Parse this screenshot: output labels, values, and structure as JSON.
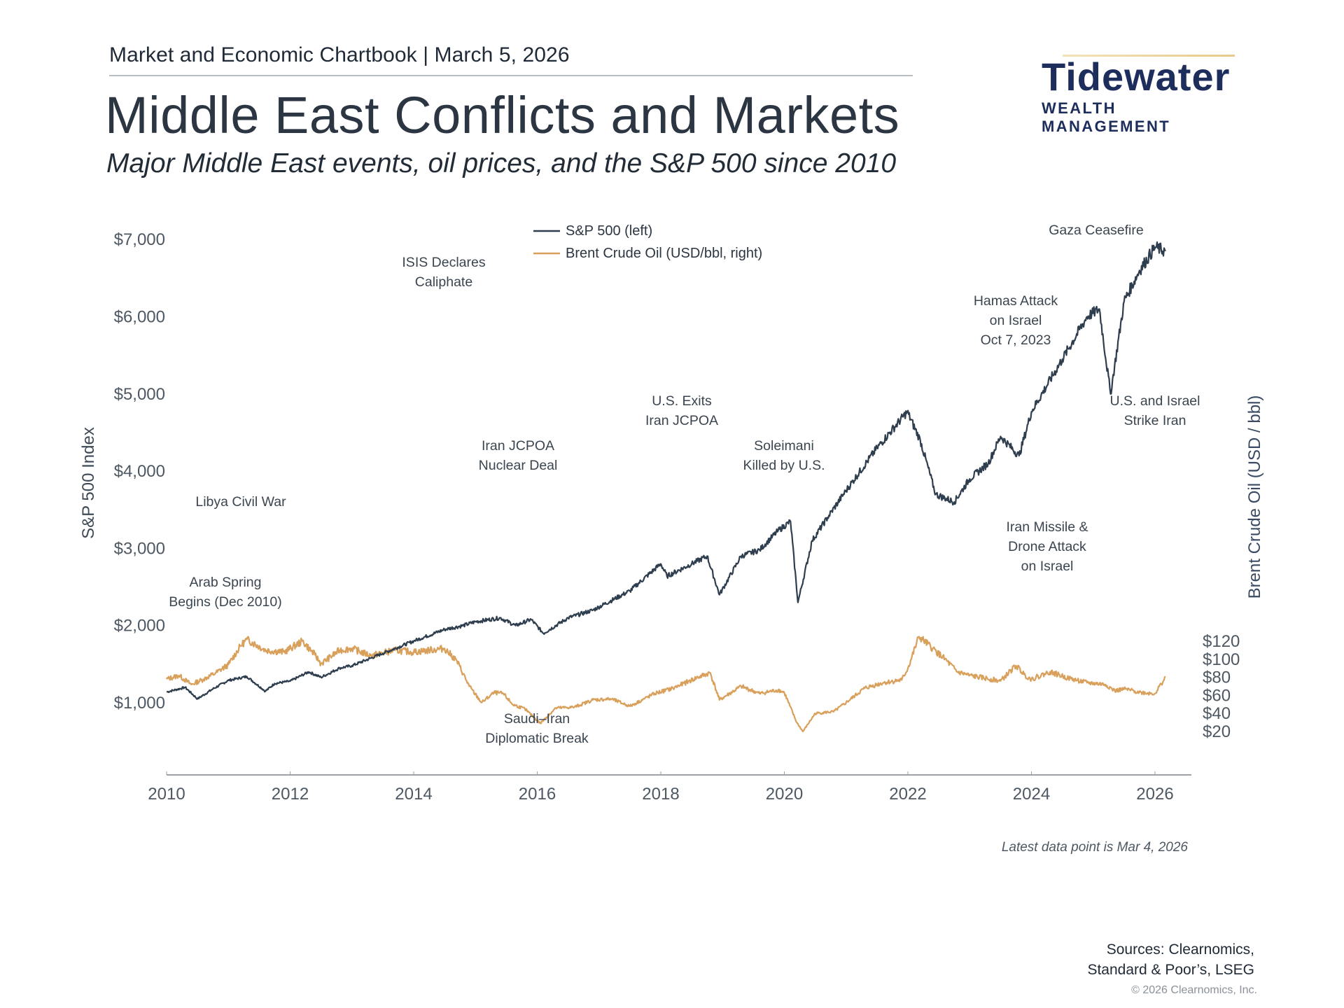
{
  "header": {
    "chartbook": "Market and Economic Chartbook | March 5, 2026",
    "title": "Middle East Conflicts and Markets",
    "subtitle": "Major Middle East events, oil prices, and the S&P 500 since 2010"
  },
  "logo": {
    "name": "Tidewater",
    "sub": "WEALTH MANAGEMENT",
    "color": "#1e2e5c"
  },
  "chart_data": {
    "type": "line",
    "xlabel": "",
    "ylabel": "S&P 500 Index",
    "y2label": "Brent Crude Oil (USD / bbl)",
    "xlim": [
      2010,
      2026.5
    ],
    "ylim": [
      0,
      7200
    ],
    "y2lim": [
      15,
      130
    ],
    "x_ticks": [
      2010,
      2012,
      2014,
      2016,
      2018,
      2020,
      2022,
      2024,
      2026
    ],
    "y_ticks": [
      1000,
      2000,
      3000,
      4000,
      5000,
      6000,
      7000
    ],
    "y_tick_labels": [
      "$1,000",
      "$2,000",
      "$3,000",
      "$4,000",
      "$5,000",
      "$6,000",
      "$7,000"
    ],
    "y2_ticks": [
      20,
      40,
      60,
      80,
      100,
      120
    ],
    "y2_tick_labels": [
      "$20",
      "$40",
      "$60",
      "$80",
      "$100",
      "$120"
    ],
    "grid": false,
    "legend_position": "top-center",
    "series": [
      {
        "name": "S&P 500 (left)",
        "axis": "left",
        "color": "#2f3e4e",
        "x": [
          2010.0,
          2010.3,
          2010.5,
          2010.75,
          2011.0,
          2011.3,
          2011.6,
          2011.75,
          2012.0,
          2012.3,
          2012.5,
          2012.8,
          2013.0,
          2013.5,
          2014.0,
          2014.5,
          2014.8,
          2015.0,
          2015.4,
          2015.65,
          2015.9,
          2016.1,
          2016.5,
          2016.9,
          2017.5,
          2018.0,
          2018.1,
          2018.5,
          2018.75,
          2018.95,
          2019.3,
          2019.6,
          2019.9,
          2020.1,
          2020.22,
          2020.45,
          2020.7,
          2021.0,
          2021.5,
          2021.99,
          2022.2,
          2022.45,
          2022.75,
          2023.0,
          2023.3,
          2023.5,
          2023.8,
          2024.0,
          2024.5,
          2024.9,
          2025.1,
          2025.28,
          2025.5,
          2025.75,
          2026.0,
          2026.17
        ],
        "values": [
          1140,
          1200,
          1050,
          1180,
          1290,
          1340,
          1150,
          1250,
          1280,
          1400,
          1330,
          1450,
          1480,
          1640,
          1800,
          1950,
          2000,
          2050,
          2100,
          2000,
          2080,
          1900,
          2100,
          2200,
          2450,
          2800,
          2640,
          2800,
          2900,
          2400,
          2900,
          2980,
          3230,
          3350,
          2300,
          3100,
          3400,
          3750,
          4300,
          4770,
          4400,
          3700,
          3600,
          3900,
          4100,
          4450,
          4200,
          4770,
          5450,
          6000,
          6100,
          5000,
          6200,
          6600,
          6900,
          6850
        ]
      },
      {
        "name": "Brent Crude Oil (USD/bbl, right)",
        "axis": "right",
        "color": "#d9a05b",
        "x": [
          2010.0,
          2010.2,
          2010.4,
          2010.6,
          2010.8,
          2011.0,
          2011.2,
          2011.3,
          2011.6,
          2011.9,
          2012.2,
          2012.4,
          2012.5,
          2012.8,
          2013.0,
          2013.3,
          2013.7,
          2014.0,
          2014.5,
          2014.7,
          2014.9,
          2015.1,
          2015.3,
          2015.45,
          2015.6,
          2015.8,
          2016.05,
          2016.3,
          2016.6,
          2016.9,
          2017.2,
          2017.5,
          2017.9,
          2018.2,
          2018.6,
          2018.8,
          2018.95,
          2019.3,
          2019.6,
          2019.9,
          2020.0,
          2020.2,
          2020.3,
          2020.5,
          2020.8,
          2021.0,
          2021.3,
          2021.6,
          2021.9,
          2022.0,
          2022.18,
          2022.4,
          2022.6,
          2022.8,
          2023.0,
          2023.5,
          2023.75,
          2023.9,
          2024.0,
          2024.3,
          2024.6,
          2024.9,
          2025.2,
          2025.35,
          2025.5,
          2025.8,
          2026.0,
          2026.17
        ],
        "values": [
          78,
          82,
          72,
          78,
          85,
          94,
          115,
          122,
          110,
          108,
          120,
          105,
          95,
          110,
          112,
          104,
          110,
          108,
          112,
          98,
          70,
          52,
          63,
          62,
          50,
          45,
          29,
          46,
          47,
          55,
          56,
          48,
          62,
          68,
          80,
          85,
          55,
          70,
          62,
          66,
          63,
          30,
          20,
          40,
          42,
          52,
          68,
          74,
          77,
          90,
          125,
          112,
          100,
          86,
          82,
          76,
          93,
          82,
          78,
          86,
          79,
          74,
          72,
          65,
          67,
          63,
          62,
          80
        ]
      }
    ],
    "annotations": [
      {
        "lines": [
          "Arab Spring",
          "Begins (Dec 2010)"
        ]
      },
      {
        "lines": [
          "Libya Civil War"
        ]
      },
      {
        "lines": [
          "ISIS Declares",
          "Caliphate"
        ]
      },
      {
        "lines": [
          "Iran JCPOA",
          "Nuclear Deal"
        ]
      },
      {
        "lines": [
          "Saudi–Iran",
          "Diplomatic Break"
        ]
      },
      {
        "lines": [
          "U.S. Exits",
          "Iran JCPOA"
        ]
      },
      {
        "lines": [
          "Soleimani",
          "Killed by U.S."
        ]
      },
      {
        "lines": [
          "Hamas Attack",
          "on Israel",
          "Oct 7, 2023"
        ]
      },
      {
        "lines": [
          "Iran Missile &",
          "Drone Attack",
          "on Israel"
        ]
      },
      {
        "lines": [
          "Gaza Ceasefire"
        ]
      },
      {
        "lines": [
          "U.S. and Israel",
          "Strike Iran"
        ]
      }
    ],
    "note": "Latest data point is Mar 4, 2026"
  },
  "footer": {
    "sources_line1": "Sources: Clearnomics,",
    "sources_line2": "Standard & Poor’s, LSEG",
    "copyright": "© 2026 Clearnomics, Inc."
  }
}
